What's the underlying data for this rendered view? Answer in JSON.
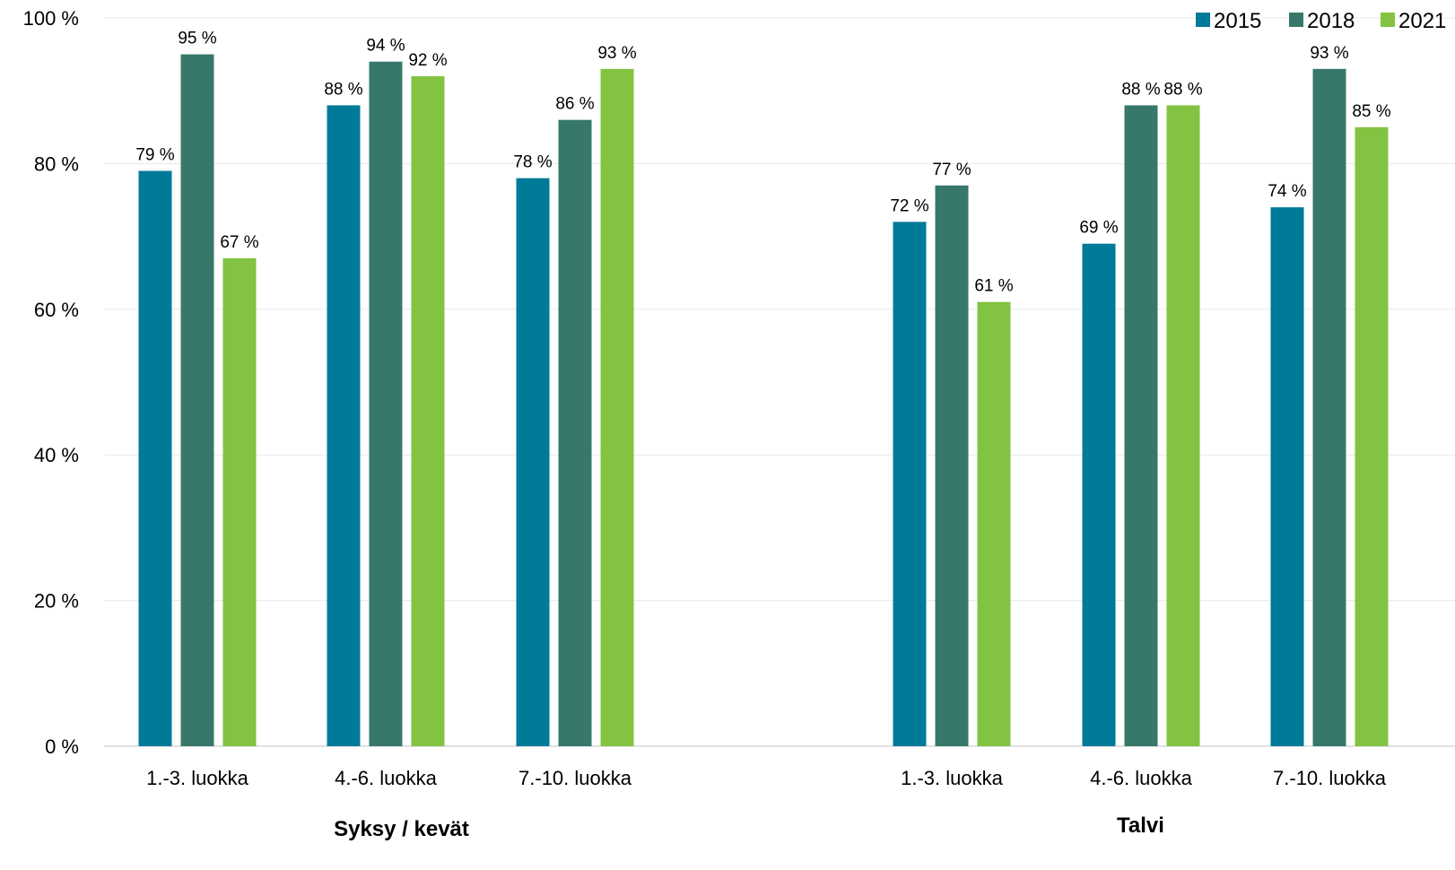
{
  "chart_data": {
    "type": "bar",
    "y_ticks": [
      "0 %",
      "20 %",
      "40 %",
      "60 %",
      "80 %",
      "100 %"
    ],
    "ylim": [
      0,
      100
    ],
    "grid": true,
    "legend_position": "top-right",
    "groups": [
      {
        "label": "Syksy / kevät",
        "categories": [
          "1.-3. luokka",
          "4.-6. luokka",
          "7.-10. luokka"
        ]
      },
      {
        "label": "Talvi",
        "categories": [
          "1.-3. luokka",
          "4.-6. luokka",
          "7.-10. luokka"
        ]
      }
    ],
    "series": [
      {
        "name": "2015",
        "color": "#007A99",
        "values": [
          79,
          88,
          78,
          72,
          69,
          74
        ],
        "labels": [
          "79 %",
          "88 %",
          "78 %",
          "72 %",
          "69 %",
          "74 %"
        ]
      },
      {
        "name": "2018",
        "color": "#37786B",
        "values": [
          95,
          94,
          86,
          77,
          88,
          93
        ],
        "labels": [
          "95 %",
          "94 %",
          "86 %",
          "77 %",
          "88 %",
          "93 %"
        ]
      },
      {
        "name": "2021",
        "color": "#82C341",
        "values": [
          67,
          92,
          93,
          61,
          88,
          85
        ],
        "labels": [
          "67 %",
          "92 %",
          "93 %",
          "61 %",
          "88 %",
          "85 %"
        ]
      }
    ]
  }
}
